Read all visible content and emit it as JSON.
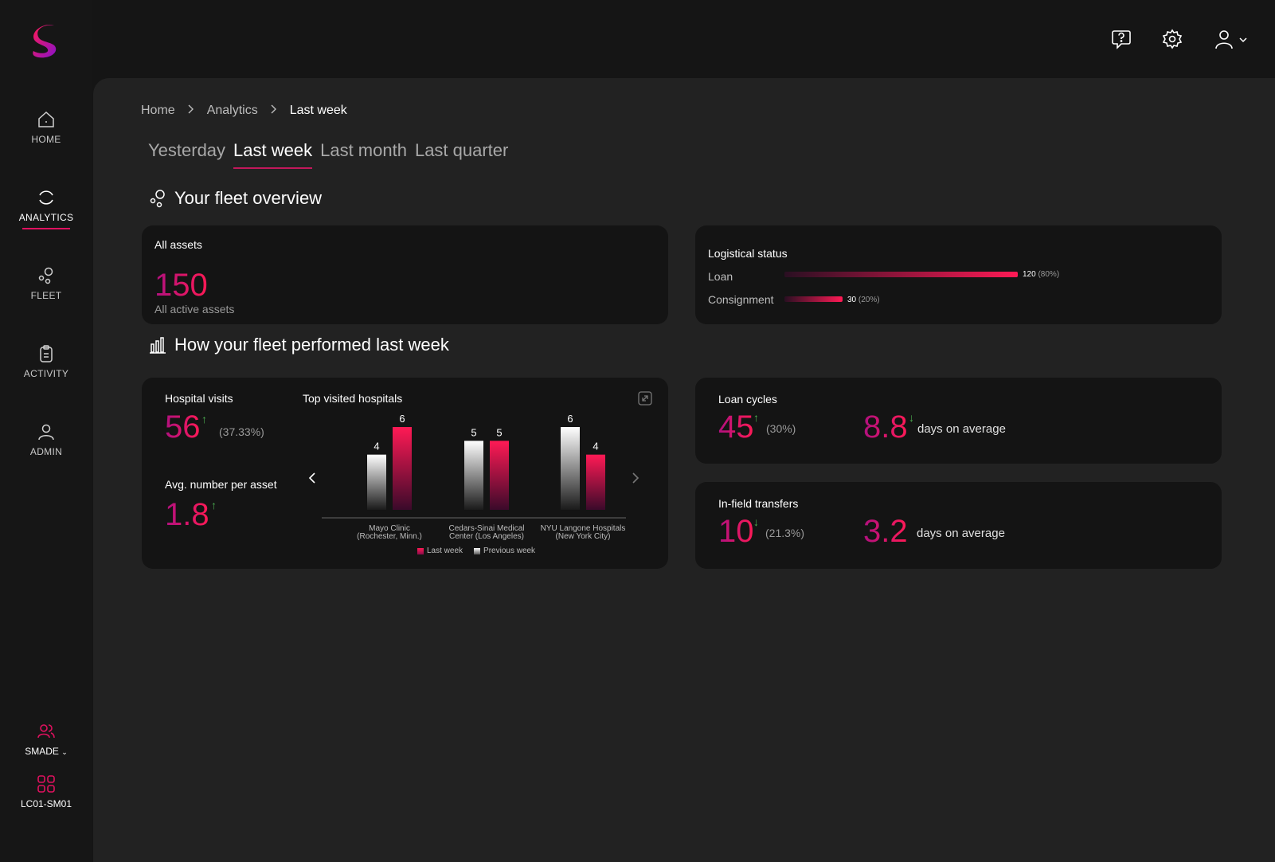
{
  "sidebar": {
    "items": [
      {
        "label": "HOME"
      },
      {
        "label": "ANALYTICS"
      },
      {
        "label": "FLEET"
      },
      {
        "label": "ACTIVITY"
      },
      {
        "label": "ADMIN"
      }
    ],
    "org": {
      "name": "SMADE",
      "device": "LC01-SM01"
    }
  },
  "breadcrumb": {
    "home": "Home",
    "analytics": "Analytics",
    "current": "Last week"
  },
  "tabs": [
    {
      "label": "Yesterday"
    },
    {
      "label": "Last week"
    },
    {
      "label": "Last month"
    },
    {
      "label": "Last quarter"
    }
  ],
  "overview": {
    "title": "Your fleet overview",
    "all_assets": {
      "title": "All assets",
      "value": "150",
      "subtitle": "All active assets"
    },
    "logistical": {
      "title": "Logistical status",
      "rows": [
        {
          "label": "Loan",
          "value": "120",
          "pct": "(80%)",
          "fraction": 0.8
        },
        {
          "label": "Consignment",
          "value": "30",
          "pct": "(20%)",
          "fraction": 0.2
        }
      ]
    }
  },
  "performance": {
    "title": "How your fleet performed last week",
    "hospital_visits": {
      "title": "Hospital visits",
      "value": "56",
      "arrow": "↑",
      "pct": "(37.33%)"
    },
    "avg_per_asset": {
      "title": "Avg. number per asset",
      "value": "1.8",
      "arrow": "↑"
    },
    "loan_cycles": {
      "title": "Loan cycles",
      "value": "45",
      "arrow": "↑",
      "pct": "(30%)",
      "avg_value": "8.8",
      "avg_arrow": "↓",
      "avg_label": "days on average"
    },
    "transfers": {
      "title": "In-field transfers",
      "value": "10",
      "arrow": "↓",
      "pct": "(21.3%)",
      "avg_value": "3.2",
      "avg_label": "days on average"
    }
  },
  "chart_data": {
    "type": "bar",
    "title": "Top visited hospitals",
    "categories": [
      [
        "Mayo Clinic",
        "(Rochester, Minn.)"
      ],
      [
        "Cedars-Sinai Medical",
        "Center (Los Angeles)"
      ],
      [
        "NYU Langone Hospitals",
        "(New York City)"
      ]
    ],
    "series": [
      {
        "name": "Previous week",
        "values": [
          4,
          5,
          6
        ]
      },
      {
        "name": "Last week",
        "values": [
          6,
          5,
          4
        ]
      }
    ],
    "ylim": [
      0,
      6
    ],
    "legend": "bottom",
    "grid": false
  },
  "colors": {
    "accent": "#ff1a55",
    "accent_dark": "#b0107f",
    "up": "#4caf50"
  }
}
